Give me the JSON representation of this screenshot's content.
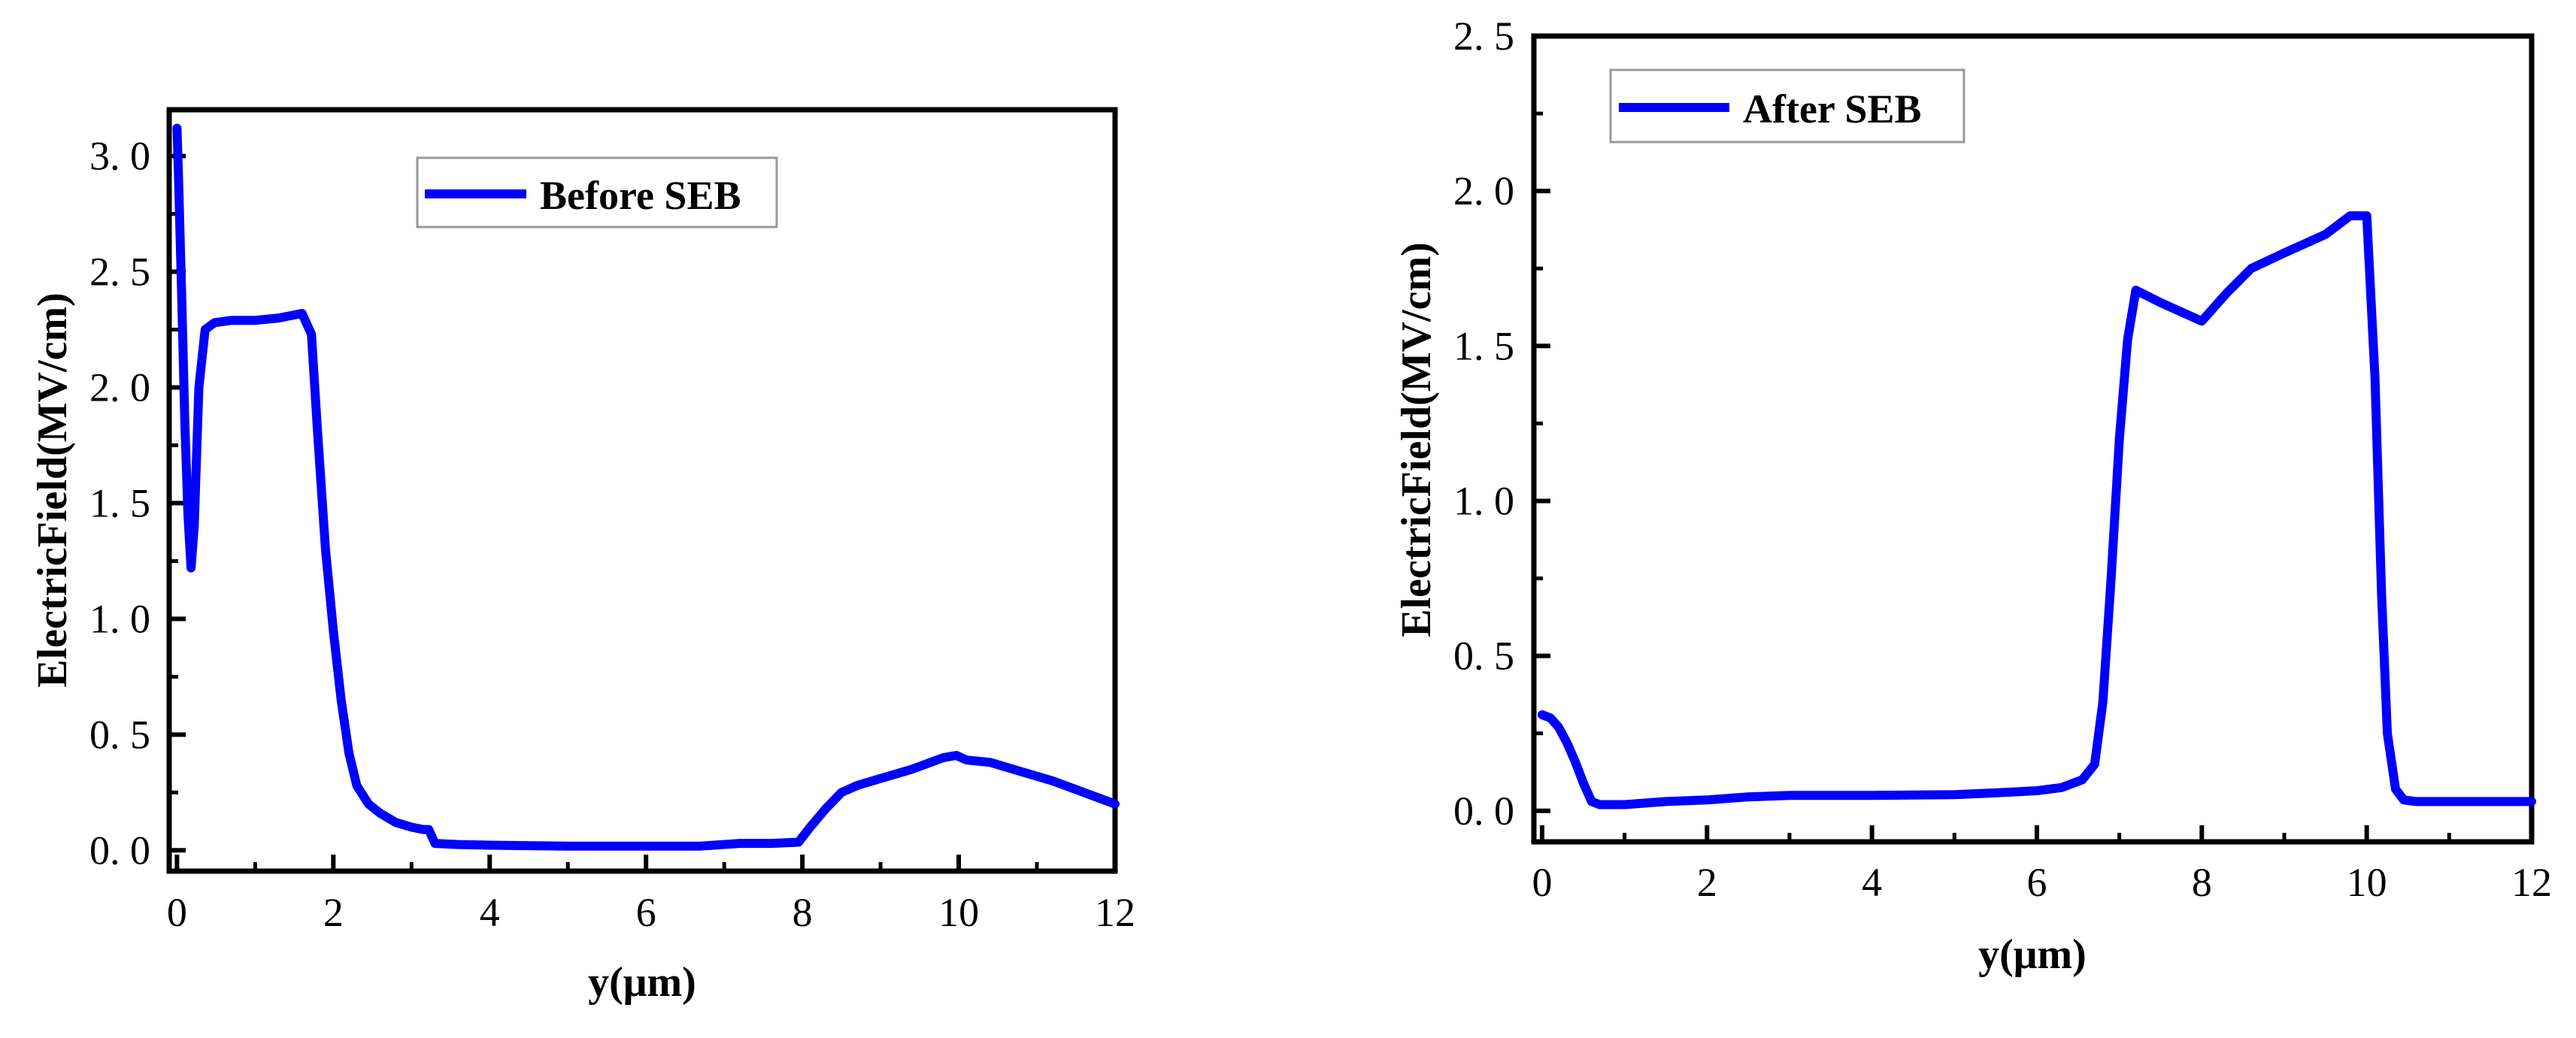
{
  "chart_data": [
    {
      "type": "line",
      "title": "",
      "xlabel": "y(μm)",
      "ylabel": "ElectricField(MV/cm)",
      "xlim": [
        -0.1,
        12
      ],
      "ylim": [
        -0.09,
        3.2
      ],
      "xticks": [
        0,
        2,
        4,
        6,
        8,
        10,
        12
      ],
      "xtick_labels": [
        "0",
        "2",
        "4",
        "6",
        "8",
        "10",
        "12"
      ],
      "yticks": [
        0.0,
        0.5,
        1.0,
        1.5,
        2.0,
        2.5,
        3.0
      ],
      "ytick_labels": [
        "0. 0",
        "0. 5",
        "1. 0",
        "1. 5",
        "2. 0",
        "2. 5",
        "3. 0"
      ],
      "grid": false,
      "legend_position": "top-center",
      "series": [
        {
          "name": "Before SEB",
          "color": "#0000ff",
          "points": [
            [
              0.0,
              3.12
            ],
            [
              0.02,
              2.9
            ],
            [
              0.06,
              2.4
            ],
            [
              0.1,
              1.85
            ],
            [
              0.14,
              1.45
            ],
            [
              0.18,
              1.22
            ],
            [
              0.22,
              1.4
            ],
            [
              0.28,
              2.0
            ],
            [
              0.36,
              2.25
            ],
            [
              0.48,
              2.28
            ],
            [
              0.7,
              2.29
            ],
            [
              1.0,
              2.29
            ],
            [
              1.3,
              2.3
            ],
            [
              1.6,
              2.32
            ],
            [
              1.72,
              2.23
            ],
            [
              1.8,
              1.8
            ],
            [
              1.9,
              1.3
            ],
            [
              2.0,
              0.95
            ],
            [
              2.1,
              0.65
            ],
            [
              2.2,
              0.42
            ],
            [
              2.3,
              0.28
            ],
            [
              2.45,
              0.2
            ],
            [
              2.6,
              0.16
            ],
            [
              2.8,
              0.12
            ],
            [
              3.0,
              0.1
            ],
            [
              3.15,
              0.09
            ],
            [
              3.22,
              0.09
            ],
            [
              3.3,
              0.03
            ],
            [
              3.6,
              0.025
            ],
            [
              4.0,
              0.022
            ],
            [
              5.0,
              0.018
            ],
            [
              6.0,
              0.018
            ],
            [
              6.7,
              0.018
            ],
            [
              7.2,
              0.03
            ],
            [
              7.6,
              0.03
            ],
            [
              7.95,
              0.035
            ],
            [
              8.1,
              0.1
            ],
            [
              8.3,
              0.18
            ],
            [
              8.5,
              0.25
            ],
            [
              8.7,
              0.28
            ],
            [
              9.0,
              0.31
            ],
            [
              9.4,
              0.35
            ],
            [
              9.8,
              0.4
            ],
            [
              9.97,
              0.41
            ],
            [
              10.1,
              0.39
            ],
            [
              10.4,
              0.38
            ],
            [
              10.8,
              0.34
            ],
            [
              11.2,
              0.3
            ],
            [
              11.6,
              0.25
            ],
            [
              12.0,
              0.2
            ]
          ]
        }
      ]
    },
    {
      "type": "line",
      "title": "",
      "xlabel": "y(μm)",
      "ylabel": "ElectricField(MV/cm)",
      "xlim": [
        -0.1,
        12
      ],
      "ylim": [
        -0.1,
        2.5
      ],
      "xticks": [
        0,
        2,
        4,
        6,
        8,
        10,
        12
      ],
      "xtick_labels": [
        "0",
        "2",
        "4",
        "6",
        "8",
        "10",
        "12"
      ],
      "yticks": [
        0.0,
        0.5,
        1.0,
        1.5,
        2.0,
        2.5
      ],
      "ytick_labels": [
        "0. 0",
        "0. 5",
        "1. 0",
        "1. 5",
        "2. 0",
        "2. 5"
      ],
      "grid": false,
      "legend_position": "top-left",
      "series": [
        {
          "name": "After SEB",
          "color": "#0000ff",
          "points": [
            [
              0.0,
              0.31
            ],
            [
              0.1,
              0.3
            ],
            [
              0.2,
              0.27
            ],
            [
              0.3,
              0.22
            ],
            [
              0.4,
              0.16
            ],
            [
              0.5,
              0.09
            ],
            [
              0.6,
              0.03
            ],
            [
              0.7,
              0.02
            ],
            [
              1.0,
              0.02
            ],
            [
              1.5,
              0.03
            ],
            [
              2.0,
              0.035
            ],
            [
              2.5,
              0.045
            ],
            [
              3.0,
              0.05
            ],
            [
              4.0,
              0.05
            ],
            [
              5.0,
              0.052
            ],
            [
              5.5,
              0.058
            ],
            [
              6.0,
              0.065
            ],
            [
              6.3,
              0.075
            ],
            [
              6.55,
              0.1
            ],
            [
              6.7,
              0.15
            ],
            [
              6.8,
              0.35
            ],
            [
              6.9,
              0.75
            ],
            [
              7.0,
              1.2
            ],
            [
              7.1,
              1.52
            ],
            [
              7.2,
              1.68
            ],
            [
              7.5,
              1.64
            ],
            [
              8.0,
              1.58
            ],
            [
              8.3,
              1.67
            ],
            [
              8.6,
              1.75
            ],
            [
              9.0,
              1.8
            ],
            [
              9.5,
              1.86
            ],
            [
              9.8,
              1.92
            ],
            [
              10.0,
              1.92
            ],
            [
              10.1,
              1.4
            ],
            [
              10.18,
              0.7
            ],
            [
              10.25,
              0.25
            ],
            [
              10.35,
              0.07
            ],
            [
              10.45,
              0.035
            ],
            [
              10.6,
              0.03
            ],
            [
              11.0,
              0.03
            ],
            [
              12.0,
              0.03
            ]
          ]
        }
      ]
    }
  ]
}
